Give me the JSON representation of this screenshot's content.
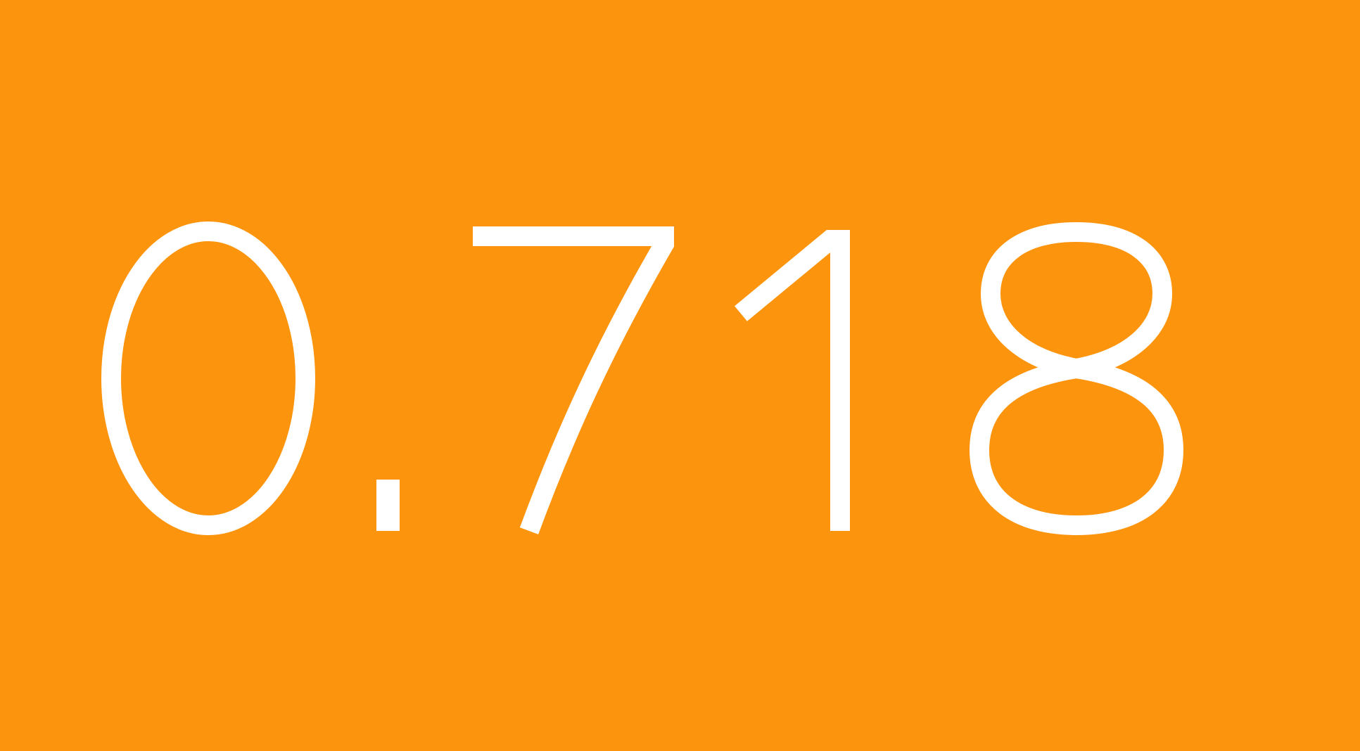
{
  "display": {
    "value": "0.718",
    "characters": [
      "0",
      ".",
      "7",
      "1",
      "8"
    ]
  },
  "colors": {
    "background": "#FC940D",
    "foreground": "#FFFFFF"
  }
}
